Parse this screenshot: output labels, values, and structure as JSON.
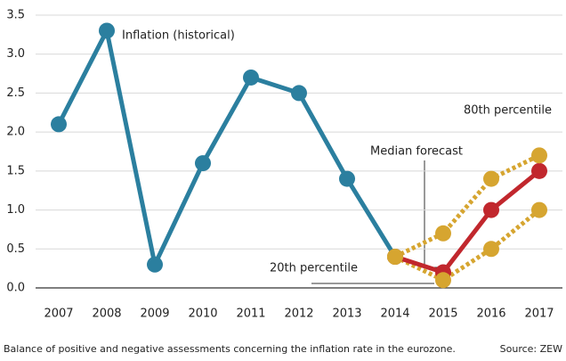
{
  "chart_data": {
    "type": "line",
    "x": [
      "2007",
      "2008",
      "2009",
      "2010",
      "2011",
      "2012",
      "2013",
      "2014",
      "2015",
      "2016",
      "2017"
    ],
    "ylim": [
      0,
      3.5
    ],
    "yticks": [
      {
        "value": 0,
        "label": "0.0"
      },
      0.5,
      {
        "value": 1,
        "label": "1.0"
      },
      1.5,
      {
        "value": 2,
        "label": "2.0"
      },
      2.5,
      {
        "value": 3,
        "label": "3.0"
      },
      3.5
    ],
    "grid": true,
    "series": [
      {
        "name": "Inflation (historical)",
        "color": "#2b7f9f",
        "style": "solid",
        "values": [
          2.1,
          3.3,
          0.3,
          1.6,
          2.7,
          2.5,
          1.4,
          0.4,
          null,
          null,
          null
        ]
      },
      {
        "name": "80th percentile",
        "color": "#d6a530",
        "style": "dotted",
        "values": [
          null,
          null,
          null,
          null,
          null,
          null,
          null,
          0.4,
          0.7,
          1.4,
          1.7
        ]
      },
      {
        "name": "20th percentile",
        "color": "#d6a530",
        "style": "dotted",
        "values": [
          null,
          null,
          null,
          null,
          null,
          null,
          null,
          0.4,
          0.1,
          0.5,
          1.0
        ]
      },
      {
        "name": "Median forecast",
        "color": "#c1272d",
        "style": "solid",
        "values": [
          null,
          null,
          null,
          null,
          null,
          null,
          null,
          0.4,
          0.2,
          1.0,
          1.5
        ]
      }
    ],
    "footnote": "Balance of positive and negative assessments concerning the inflation rate in the eurozone.",
    "source": "Source: ZEW"
  }
}
